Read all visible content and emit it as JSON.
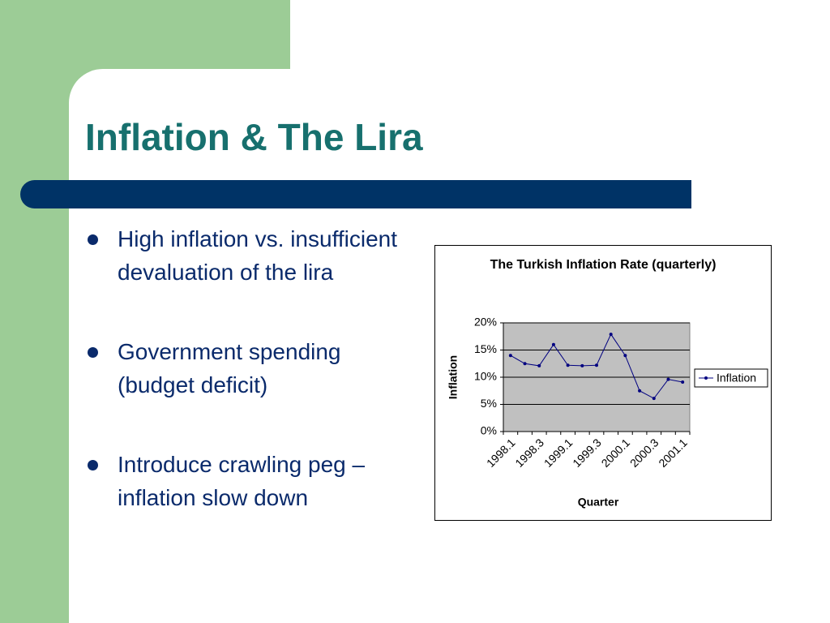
{
  "title": "Inflation & The Lira",
  "bullets": [
    "High inflation vs. insufficient devaluation of the lira",
    "Government spending (budget deficit)",
    "Introduce crawling peg – inflation slow down"
  ],
  "chart_data": {
    "type": "line",
    "title": "The Turkish Inflation Rate (quarterly)",
    "x_label": "Quarter",
    "y_label": "Inflation",
    "categories": [
      "1998.1",
      null,
      "1998.3",
      null,
      "1999.1",
      null,
      "1999.3",
      null,
      "2000.1",
      null,
      "2000.3",
      null,
      "2001.1"
    ],
    "series": [
      {
        "name": "Inflation",
        "color": "#000080",
        "values": [
          14.0,
          12.5,
          12.1,
          16.0,
          12.2,
          12.1,
          12.2,
          17.9,
          14.0,
          7.5,
          6.1,
          9.6,
          9.1
        ]
      }
    ],
    "ylim": [
      0,
      20
    ],
    "yticks": [
      {
        "value": 0,
        "label": "0%"
      },
      {
        "value": 5,
        "label": "5%"
      },
      {
        "value": 10,
        "label": "10%"
      },
      {
        "value": 15,
        "label": "15%"
      },
      {
        "value": 20,
        "label": "20%"
      }
    ],
    "grid": true,
    "legend": "right"
  }
}
